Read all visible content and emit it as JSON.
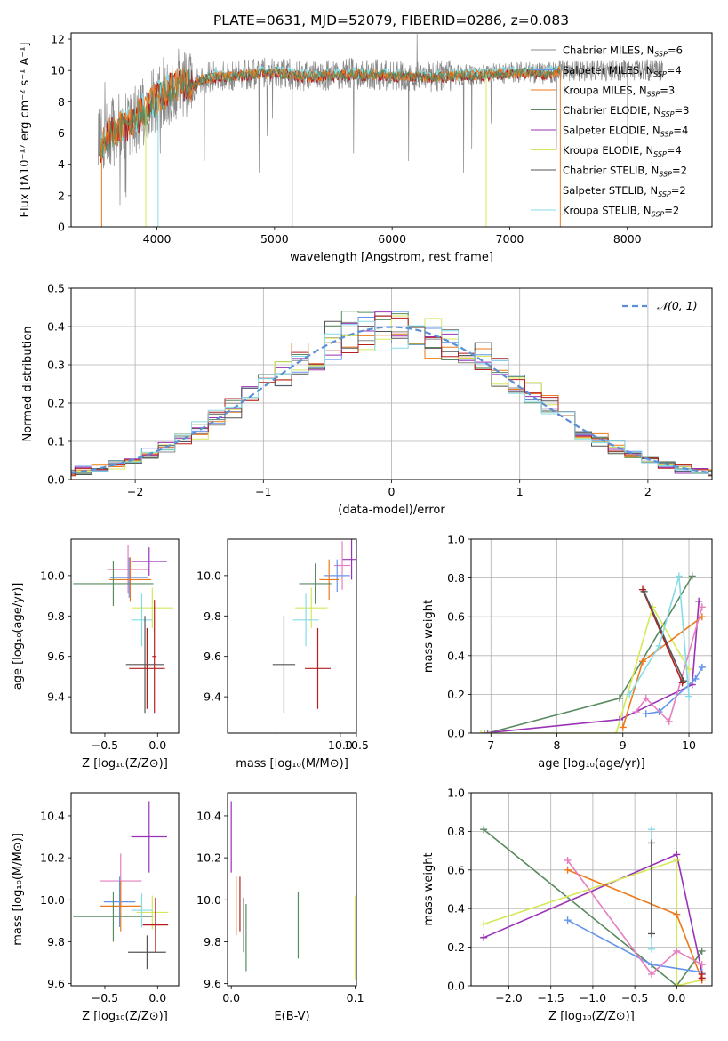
{
  "figure": {
    "title": "PLATE=0631, MJD=52079, FIBERID=0286, z=0.083"
  },
  "colors": {
    "chabrier_miles": "#888888",
    "salpeter_miles": "#6495ed",
    "kroupa_miles": "#ec7a1c",
    "chabrier_elodie": "#5a8a5f",
    "salpeter_elodie": "#9a32b8",
    "kroupa_elodie": "#d5e85a",
    "chabrier_stelib": "#555555",
    "salpeter_stelib": "#b51f1f",
    "kroupa_stelib": "#86dbe6",
    "pink": "#e67fbf",
    "normal_curve": "#5b8fd6"
  },
  "chart_data": [
    {
      "id": "spectrum",
      "type": "line",
      "xlabel": "wavelength [Angstrom, rest frame]",
      "ylabel": "Flux [fλ10⁻¹⁷ erg cm⁻² s⁻¹ A⁻¹]",
      "xlim": [
        3270,
        8720
      ],
      "ylim": [
        0,
        12.4
      ],
      "xticks": [
        4000,
        5000,
        6000,
        7000,
        8000
      ],
      "yticks": [
        0,
        2,
        4,
        6,
        8,
        10,
        12
      ],
      "legend_position": "top-right",
      "legend": [
        {
          "label": "Chabrier MILES, N",
          "sub": "SSP",
          "suffix": "=6",
          "color": "#888888"
        },
        {
          "label": "Salpeter MILES, N",
          "sub": "SSP",
          "suffix": "=4",
          "color": "#6495ed"
        },
        {
          "label": "Kroupa MILES, N",
          "sub": "SSP",
          "suffix": "=3",
          "color": "#ec7a1c"
        },
        {
          "label": "Chabrier ELODIE, N",
          "sub": "SSP",
          "suffix": "=3",
          "color": "#5a8a5f"
        },
        {
          "label": "Salpeter ELODIE, N",
          "sub": "SSP",
          "suffix": "=4",
          "color": "#9a32b8"
        },
        {
          "label": "Kroupa ELODIE, N",
          "sub": "SSP",
          "suffix": "=4",
          "color": "#d5e85a"
        },
        {
          "label": "Chabrier STELIB, N",
          "sub": "SSP",
          "suffix": "=2",
          "color": "#555555"
        },
        {
          "label": "Salpeter STELIB, N",
          "sub": "SSP",
          "suffix": "=2",
          "color": "#b51f1f"
        },
        {
          "label": "Kroupa STELIB, N",
          "sub": "SSP",
          "suffix": "=2",
          "color": "#86dbe6"
        }
      ],
      "continuum": {
        "x": [
          3530,
          3600,
          3700,
          3800,
          3900,
          4000,
          4100,
          4200,
          4300,
          4400,
          4500,
          4700,
          5000,
          5300,
          5600,
          6000,
          6300,
          6600,
          6900,
          7100,
          7300,
          7430
        ],
        "y": [
          5.2,
          6.0,
          6.4,
          6.8,
          7.6,
          8.2,
          8.8,
          9.2,
          9.0,
          9.5,
          9.6,
          9.7,
          9.9,
          9.6,
          9.8,
          9.7,
          9.6,
          9.7,
          9.8,
          9.9,
          9.8,
          10.0
        ]
      },
      "data_range": [
        3500,
        8300
      ]
    },
    {
      "id": "residuals",
      "type": "step",
      "xlabel": "(data-model)/error",
      "ylabel": "Normed distribution",
      "xlim": [
        -2.5,
        2.5
      ],
      "ylim": [
        0,
        0.5
      ],
      "xticks": [
        -2,
        -1,
        0,
        1,
        2
      ],
      "yticks": [
        0.0,
        0.1,
        0.2,
        0.3,
        0.4,
        0.5
      ],
      "legend_position": "top-right",
      "legend": [
        {
          "label": "𝒩(0, 1)",
          "color": "#5b8fd6",
          "style": "dashed"
        }
      ],
      "normal": {
        "mean": 0,
        "sigma": 1
      }
    },
    {
      "id": "age-vs-z",
      "type": "errorbar",
      "xlabel": "Z [log₁₀(Z/Z⊙)]",
      "ylabel": "age  [log₁₀(age/yr)]",
      "xlim": [
        -0.82,
        0.2
      ],
      "ylim": [
        9.22,
        10.18
      ],
      "xticks": [
        -0.5,
        0.0
      ],
      "yticks": [
        9.4,
        9.6,
        9.8,
        10.0
      ],
      "points": [
        {
          "x": -0.28,
          "y": 10.03,
          "xerr": 0.2,
          "yerr": 0.12,
          "color": "#e67fbf"
        },
        {
          "x": -0.27,
          "y": 9.99,
          "xerr": 0.18,
          "yerr": 0.1,
          "color": "#6495ed"
        },
        {
          "x": -0.26,
          "y": 9.98,
          "xerr": 0.2,
          "yerr": 0.11,
          "color": "#ec7a1c"
        },
        {
          "x": -0.42,
          "y": 9.96,
          "xerr": 0.38,
          "yerr": 0.11,
          "color": "#5a8a5f"
        },
        {
          "x": -0.08,
          "y": 10.07,
          "xerr": 0.17,
          "yerr": 0.07,
          "color": "#9a32b8"
        },
        {
          "x": -0.05,
          "y": 9.84,
          "xerr": 0.2,
          "yerr": 0.1,
          "color": "#d5e85a"
        },
        {
          "x": -0.15,
          "y": 9.78,
          "xerr": 0.1,
          "yerr": 0.13,
          "color": "#86dbe6"
        },
        {
          "x": -0.12,
          "y": 9.56,
          "xerr": 0.18,
          "yerr": 0.24,
          "color": "#555555"
        },
        {
          "x": -0.1,
          "y": 9.54,
          "xerr": 0.17,
          "yerr": 0.2,
          "color": "#b51f1f"
        },
        {
          "x": -0.03,
          "y": 9.6,
          "xerr": 0.02,
          "yerr": 0.28,
          "color": "#b51f1f"
        }
      ]
    },
    {
      "id": "age-vs-mass",
      "type": "errorbar",
      "xlabel": "mass [log₁₀(M/M⊙)]",
      "ylabel": "",
      "xlim": [
        6.5,
        10.5
      ],
      "ylim": [
        9.22,
        10.18
      ],
      "xticks": [
        8.0,
        10.0,
        10.5
      ],
      "xticklabels": [
        "",
        "10.0",
        "10.5"
      ],
      "yticks": [
        9.4,
        9.6,
        9.8,
        10.0
      ],
      "points": [
        {
          "x": 10.35,
          "y": 10.08,
          "xerr": 0.3,
          "yerr": 0.1,
          "color": "#9a32b8"
        },
        {
          "x": 10.06,
          "y": 10.05,
          "xerr": 0.25,
          "yerr": 0.12,
          "color": "#e67fbf"
        },
        {
          "x": 9.9,
          "y": 10.0,
          "xerr": 0.4,
          "yerr": 0.08,
          "color": "#6495ed"
        },
        {
          "x": 9.65,
          "y": 9.98,
          "xerr": 0.3,
          "yerr": 0.1,
          "color": "#ec7a1c"
        },
        {
          "x": 9.22,
          "y": 9.96,
          "xerr": 0.5,
          "yerr": 0.1,
          "color": "#5a8a5f"
        },
        {
          "x": 9.1,
          "y": 9.84,
          "xerr": 0.5,
          "yerr": 0.1,
          "color": "#d5e85a"
        },
        {
          "x": 8.93,
          "y": 9.78,
          "xerr": 0.4,
          "yerr": 0.13,
          "color": "#86dbe6"
        },
        {
          "x": 8.25,
          "y": 9.56,
          "xerr": 0.35,
          "yerr": 0.24,
          "color": "#555555"
        },
        {
          "x": 9.3,
          "y": 9.54,
          "xerr": 0.4,
          "yerr": 0.2,
          "color": "#b51f1f"
        }
      ]
    },
    {
      "id": "weight-vs-age",
      "type": "line",
      "xlabel": "age  [log₁₀(age/yr)]",
      "ylabel": "mass weight",
      "xlim": [
        6.7,
        10.35
      ],
      "ylim": [
        0,
        1.0
      ],
      "xticks": [
        7,
        8,
        9,
        10
      ],
      "yticks": [
        0.0,
        0.2,
        0.4,
        0.6,
        0.8,
        1.0
      ],
      "series": [
        {
          "color": "#5a8a5f",
          "x": [
            6.95,
            8.95,
            10.05
          ],
          "y": [
            0.0,
            0.18,
            0.81
          ]
        },
        {
          "color": "#9a32b8",
          "x": [
            6.9,
            8.95,
            10.05,
            10.15
          ],
          "y": [
            0.0,
            0.07,
            0.25,
            0.68
          ]
        },
        {
          "color": "#d5e85a",
          "x": [
            6.85,
            8.9,
            9.45,
            10.0
          ],
          "y": [
            0.0,
            0.0,
            0.65,
            0.33
          ]
        },
        {
          "color": "#ec7a1c",
          "x": [
            9.0,
            9.3,
            10.2
          ],
          "y": [
            0.03,
            0.37,
            0.6
          ]
        },
        {
          "color": "#6495ed",
          "x": [
            9.35,
            9.55,
            10.1,
            10.2
          ],
          "y": [
            0.1,
            0.11,
            0.28,
            0.34
          ]
        },
        {
          "color": "#e67fbf",
          "x": [
            9.2,
            9.35,
            9.7,
            10.2
          ],
          "y": [
            0.11,
            0.18,
            0.06,
            0.65
          ]
        },
        {
          "color": "#b51f1f",
          "x": [
            9.3,
            9.9
          ],
          "y": [
            0.74,
            0.26
          ]
        },
        {
          "color": "#555555",
          "x": [
            9.32,
            9.92
          ],
          "y": [
            0.73,
            0.27
          ]
        },
        {
          "color": "#86dbe6",
          "x": [
            9.1,
            9.55,
            9.85,
            10.0
          ],
          "y": [
            0.2,
            0.45,
            0.81,
            0.19
          ]
        }
      ]
    },
    {
      "id": "mass-vs-z",
      "type": "errorbar",
      "xlabel": "Z [log₁₀(Z/Z⊙)]",
      "ylabel": "mass [log₁₀(M/M⊙)]",
      "xlim": [
        -0.82,
        0.2
      ],
      "ylim": [
        9.59,
        10.51
      ],
      "xticks": [
        -0.5,
        0.0
      ],
      "yticks": [
        9.6,
        9.8,
        10.0,
        10.2,
        10.4
      ],
      "points": [
        {
          "x": -0.08,
          "y": 10.3,
          "xerr": 0.17,
          "yerr": 0.17,
          "color": "#9a32b8"
        },
        {
          "x": -0.35,
          "y": 10.09,
          "xerr": 0.2,
          "yerr": 0.13,
          "color": "#e67fbf"
        },
        {
          "x": -0.36,
          "y": 9.99,
          "xerr": 0.15,
          "yerr": 0.12,
          "color": "#6495ed"
        },
        {
          "x": -0.35,
          "y": 9.97,
          "xerr": 0.2,
          "yerr": 0.12,
          "color": "#ec7a1c"
        },
        {
          "x": -0.42,
          "y": 9.92,
          "xerr": 0.38,
          "yerr": 0.12,
          "color": "#5a8a5f"
        },
        {
          "x": -0.05,
          "y": 9.94,
          "xerr": 0.15,
          "yerr": 0.08,
          "color": "#d5e85a"
        },
        {
          "x": -0.15,
          "y": 9.95,
          "xerr": 0.1,
          "yerr": 0.08,
          "color": "#86dbe6"
        },
        {
          "x": -0.02,
          "y": 9.88,
          "xerr": 0.12,
          "yerr": 0.13,
          "color": "#b51f1f"
        },
        {
          "x": -0.1,
          "y": 9.75,
          "xerr": 0.18,
          "yerr": 0.08,
          "color": "#555555"
        }
      ]
    },
    {
      "id": "mass-vs-ebv",
      "type": "errorbar",
      "xlabel": "E(B-V)",
      "ylabel": "",
      "xlim": [
        -0.003,
        0.101
      ],
      "ylim": [
        9.59,
        10.51
      ],
      "xticks": [
        0.0,
        0.1
      ],
      "yticks": [
        9.6,
        9.8,
        10.0,
        10.2,
        10.4
      ],
      "points": [
        {
          "x": 0.0,
          "y": 10.3,
          "xerr": 0,
          "yerr": 0.17,
          "color": "#9a32b8"
        },
        {
          "x": 0.004,
          "y": 9.97,
          "xerr": 0,
          "yerr": 0.14,
          "color": "#ec7a1c"
        },
        {
          "x": 0.007,
          "y": 9.98,
          "xerr": 0,
          "yerr": 0.13,
          "color": "#b51f1f"
        },
        {
          "x": 0.01,
          "y": 9.88,
          "xerr": 0,
          "yerr": 0.13,
          "color": "#555555"
        },
        {
          "x": 0.012,
          "y": 9.82,
          "xerr": 0,
          "yerr": 0.16,
          "color": "#5a8a5f"
        },
        {
          "x": 0.054,
          "y": 9.88,
          "xerr": 0,
          "yerr": 0.16,
          "color": "#5a8a5f"
        },
        {
          "x": 0.1,
          "y": 9.82,
          "xerr": 0,
          "yerr": 0.2,
          "color": "#d5e85a"
        }
      ]
    },
    {
      "id": "weight-vs-z",
      "type": "line",
      "xlabel": "Z [log₁₀(Z/Z⊙)]",
      "ylabel": "mass weight",
      "xlim": [
        -2.45,
        0.42
      ],
      "ylim": [
        0,
        1.0
      ],
      "xticks": [
        -2.0,
        -1.5,
        -1.0,
        -0.5,
        0.0
      ],
      "yticks": [
        0.0,
        0.2,
        0.4,
        0.6,
        0.8,
        1.0
      ],
      "series": [
        {
          "color": "#5a8a5f",
          "x": [
            -2.3,
            0.0,
            0.3
          ],
          "y": [
            0.81,
            0.0,
            0.18
          ]
        },
        {
          "color": "#9a32b8",
          "x": [
            -2.3,
            0.0,
            0.3
          ],
          "y": [
            0.25,
            0.68,
            0.07
          ]
        },
        {
          "color": "#d5e85a",
          "x": [
            -2.3,
            0.0,
            0.0,
            0.3
          ],
          "y": [
            0.32,
            0.65,
            0.0,
            0.03
          ]
        },
        {
          "color": "#ec7a1c",
          "x": [
            -1.3,
            0.0,
            0.3
          ],
          "y": [
            0.6,
            0.37,
            0.03
          ]
        },
        {
          "color": "#6495ed",
          "x": [
            -1.3,
            -0.3,
            0.3
          ],
          "y": [
            0.34,
            0.11,
            0.07
          ]
        },
        {
          "color": "#e67fbf",
          "x": [
            -1.3,
            -0.3,
            0.0,
            0.3
          ],
          "y": [
            0.65,
            0.06,
            0.18,
            0.11
          ]
        },
        {
          "color": "#86dbe6",
          "x": [
            -0.3,
            -0.3
          ],
          "y": [
            0.81,
            0.19
          ]
        },
        {
          "color": "#555555",
          "x": [
            -0.3,
            -0.3
          ],
          "y": [
            0.74,
            0.27
          ]
        },
        {
          "color": "#b51f1f",
          "x": [
            0.3,
            0.3
          ],
          "y": [
            0.06,
            0.04
          ]
        }
      ]
    }
  ]
}
